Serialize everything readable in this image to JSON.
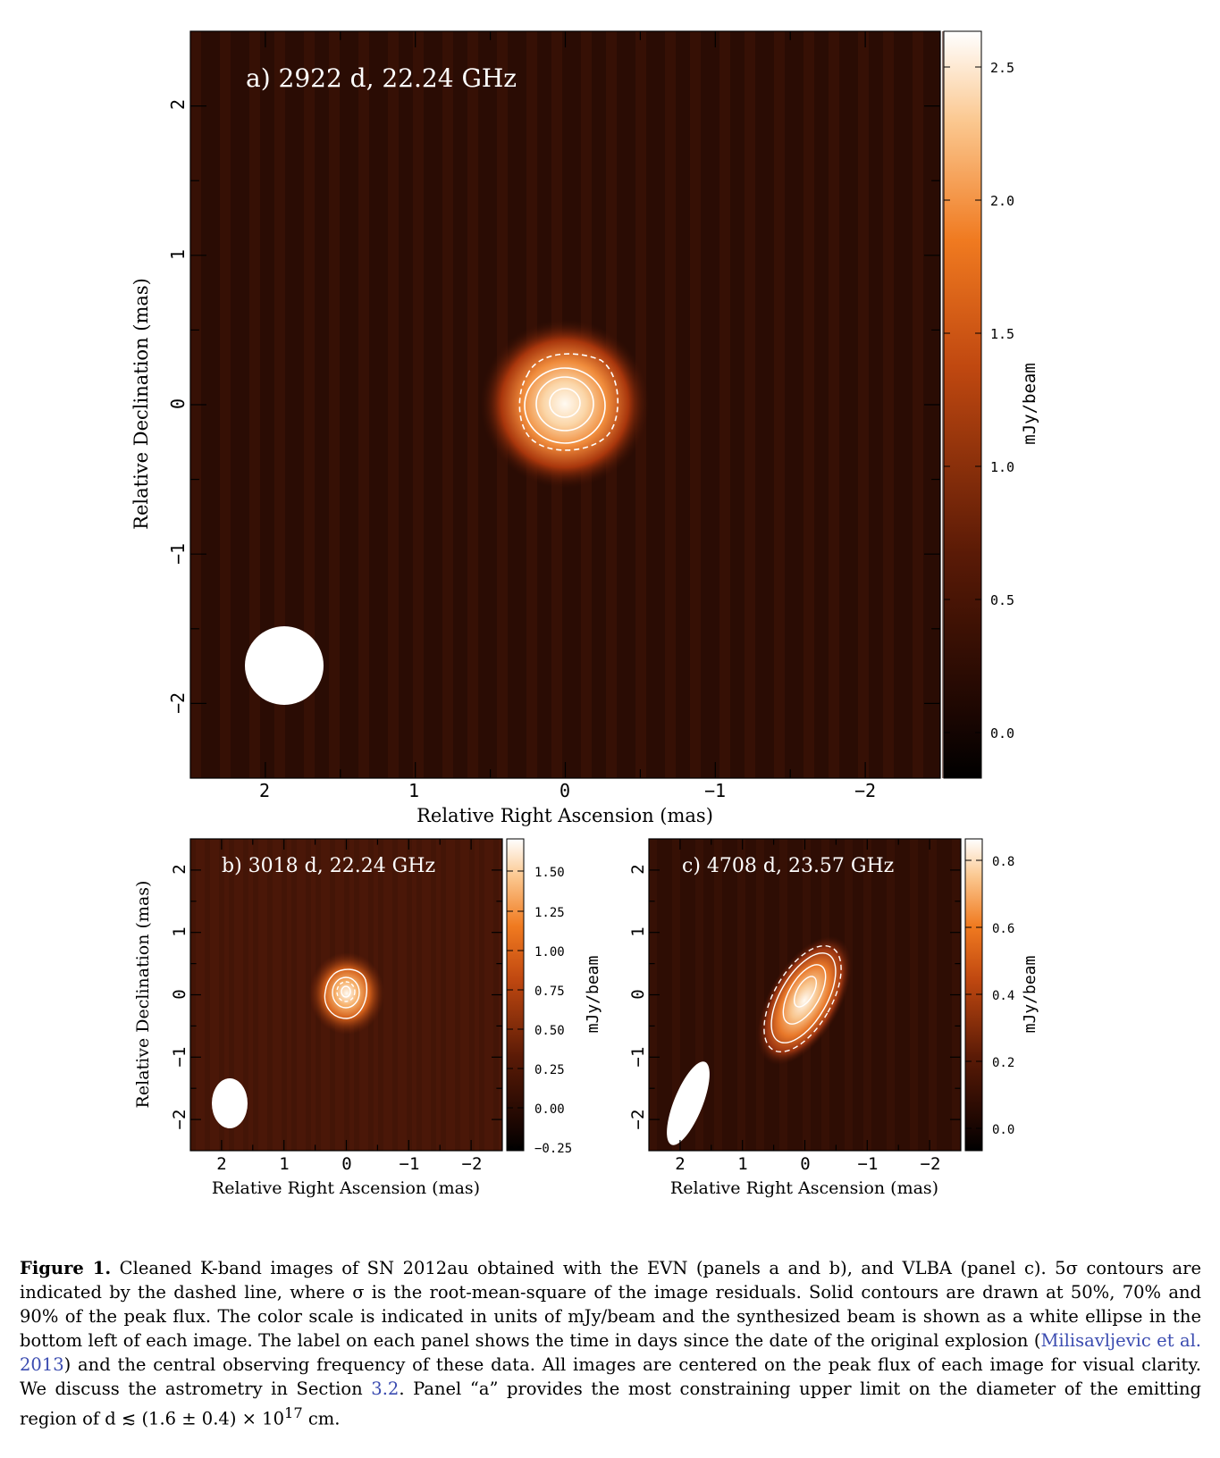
{
  "panels": [
    {
      "title": "a) 2922 d, 22.24 GHz",
      "xlabel": "Relative Right Ascension (mas)",
      "ylabel": "Relative Declination (mas)",
      "xticks": [
        "2",
        "1",
        "0",
        "−1",
        "−2"
      ],
      "yticks": [
        "2",
        "1",
        "0",
        "−1",
        "−2"
      ],
      "colorbar": {
        "label": "mJy/beam",
        "ticks": [
          "2.5",
          "2.0",
          "1.5",
          "1.0",
          "0.5",
          "0.0"
        ],
        "range": [
          -0.15,
          2.65
        ]
      },
      "beam_shape": "circle"
    },
    {
      "title": "b) 3018 d, 22.24 GHz",
      "xlabel": "Relative Right Ascension (mas)",
      "ylabel": "Relative Declination (mas)",
      "xticks": [
        "2",
        "1",
        "0",
        "−1",
        "−2"
      ],
      "yticks": [
        "2",
        "1",
        "0",
        "−1",
        "−2"
      ],
      "colorbar": {
        "label": "mJy/beam",
        "ticks": [
          "1.50",
          "1.25",
          "1.00",
          "0.75",
          "0.50",
          "0.25",
          "0.00",
          "−0.25"
        ],
        "range": [
          -0.28,
          1.68
        ]
      },
      "beam_shape": "ellipse"
    },
    {
      "title": "c) 4708 d, 23.57 GHz",
      "xlabel": "Relative Right Ascension (mas)",
      "ylabel": "",
      "xticks": [
        "2",
        "1",
        "0",
        "−1",
        "−2"
      ],
      "yticks": [
        "2",
        "1",
        "0",
        "−1",
        "−2"
      ],
      "colorbar": {
        "label": "mJy/beam",
        "ticks": [
          "0.8",
          "0.6",
          "0.4",
          "0.2",
          "0.0"
        ],
        "range": [
          -0.05,
          0.86
        ]
      },
      "beam_shape": "tilted-ellipse"
    }
  ],
  "colors": {
    "map_background": "#2a0c04",
    "map_stripe": "#401407",
    "source_peak": "#fffaf2",
    "source_mid": "#f08c3c",
    "contour": "#ffffff",
    "citation_link": "#3a4bb0"
  },
  "caption": {
    "label": "Figure 1.",
    "text_1": "Cleaned K-band images of SN 2012au obtained with the EVN (panels a and b), and VLBA (panel c). 5σ contours are indicated by the dashed line, where σ is the root-mean-square of the image residuals. Solid contours are drawn at 50%, 70% and 90% of the peak flux. The color scale is indicated in units of mJy/beam and the synthesized beam is shown as a white ellipse in the bottom left of each image. The label on each panel shows the time in days since the date of the original explosion (",
    "cite": "Milisavljevic et al. 2013",
    "text_2": ") and the central observing frequency of these data. All images are centered on the peak flux of each image for visual clarity. We discuss the astrometry in Section ",
    "section_ref": "3.2",
    "text_3": ". Panel “a” provides the most constraining upper limit on the diameter of the emitting region of d ≲ (1.6 ± 0.4) × 10",
    "exponent": "17",
    "text_4": " cm."
  }
}
